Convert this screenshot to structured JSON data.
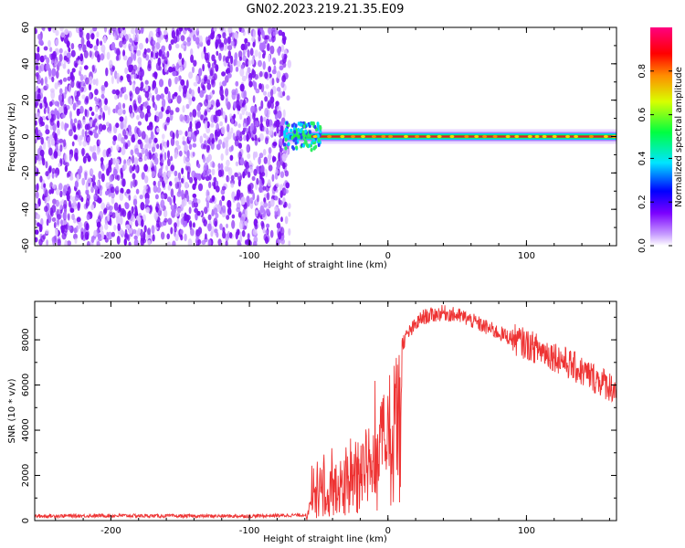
{
  "title": "GN02.2023.219.21.35.E09",
  "chart_data": [
    {
      "type": "heatmap",
      "name": "spectrogram",
      "xlabel": "Height of straight line (km)",
      "ylabel": "Frequency (Hz)",
      "xlim": [
        -255,
        165
      ],
      "ylim": [
        -60,
        60
      ],
      "xticks": [
        -200,
        -100,
        0,
        100
      ],
      "yticks": [
        60,
        40,
        20,
        0,
        -20,
        -40,
        -60
      ],
      "noise_region_x": [
        -255,
        -75
      ],
      "band_center_hz": 0,
      "colorbar": {
        "label": "Normalized spectral amplitude",
        "range": [
          0,
          1
        ],
        "ticks": [
          "0.0",
          "0.2",
          "0.4",
          "0.6",
          "0.8"
        ],
        "colors": [
          "#ffffff",
          "#c9a0ff",
          "#7b00ff",
          "#0000ff",
          "#00e5ff",
          "#00ff40",
          "#d8ff00",
          "#ff8c00",
          "#ff0000",
          "#ff0080"
        ]
      }
    },
    {
      "type": "line",
      "name": "snr",
      "xlabel": "Height of straight line (km)",
      "ylabel": "SNR (10 * v/v)",
      "xlim": [
        -255,
        165
      ],
      "ylim": [
        0,
        9700
      ],
      "xticks": [
        -200,
        -100,
        0,
        100
      ],
      "yticks": [
        0,
        2000,
        4000,
        6000,
        8000
      ],
      "color": "#ee3333",
      "envelope": [
        {
          "x": -255,
          "y": 200
        },
        {
          "x": -200,
          "y": 220
        },
        {
          "x": -150,
          "y": 200
        },
        {
          "x": -100,
          "y": 200
        },
        {
          "x": -60,
          "y": 250
        },
        {
          "x": -52,
          "y": 1800
        },
        {
          "x": -45,
          "y": 3200
        },
        {
          "x": -38,
          "y": 2400
        },
        {
          "x": -30,
          "y": 3000
        },
        {
          "x": -22,
          "y": 3600
        },
        {
          "x": -12,
          "y": 4600
        },
        {
          "x": -5,
          "y": 5400
        },
        {
          "x": 0,
          "y": 6300
        },
        {
          "x": 5,
          "y": 7300
        },
        {
          "x": 15,
          "y": 8300
        },
        {
          "x": 25,
          "y": 9000
        },
        {
          "x": 40,
          "y": 9200
        },
        {
          "x": 55,
          "y": 9000
        },
        {
          "x": 80,
          "y": 8300
        },
        {
          "x": 100,
          "y": 7800
        },
        {
          "x": 120,
          "y": 7300
        },
        {
          "x": 140,
          "y": 6600
        },
        {
          "x": 165,
          "y": 5800
        }
      ]
    }
  ]
}
